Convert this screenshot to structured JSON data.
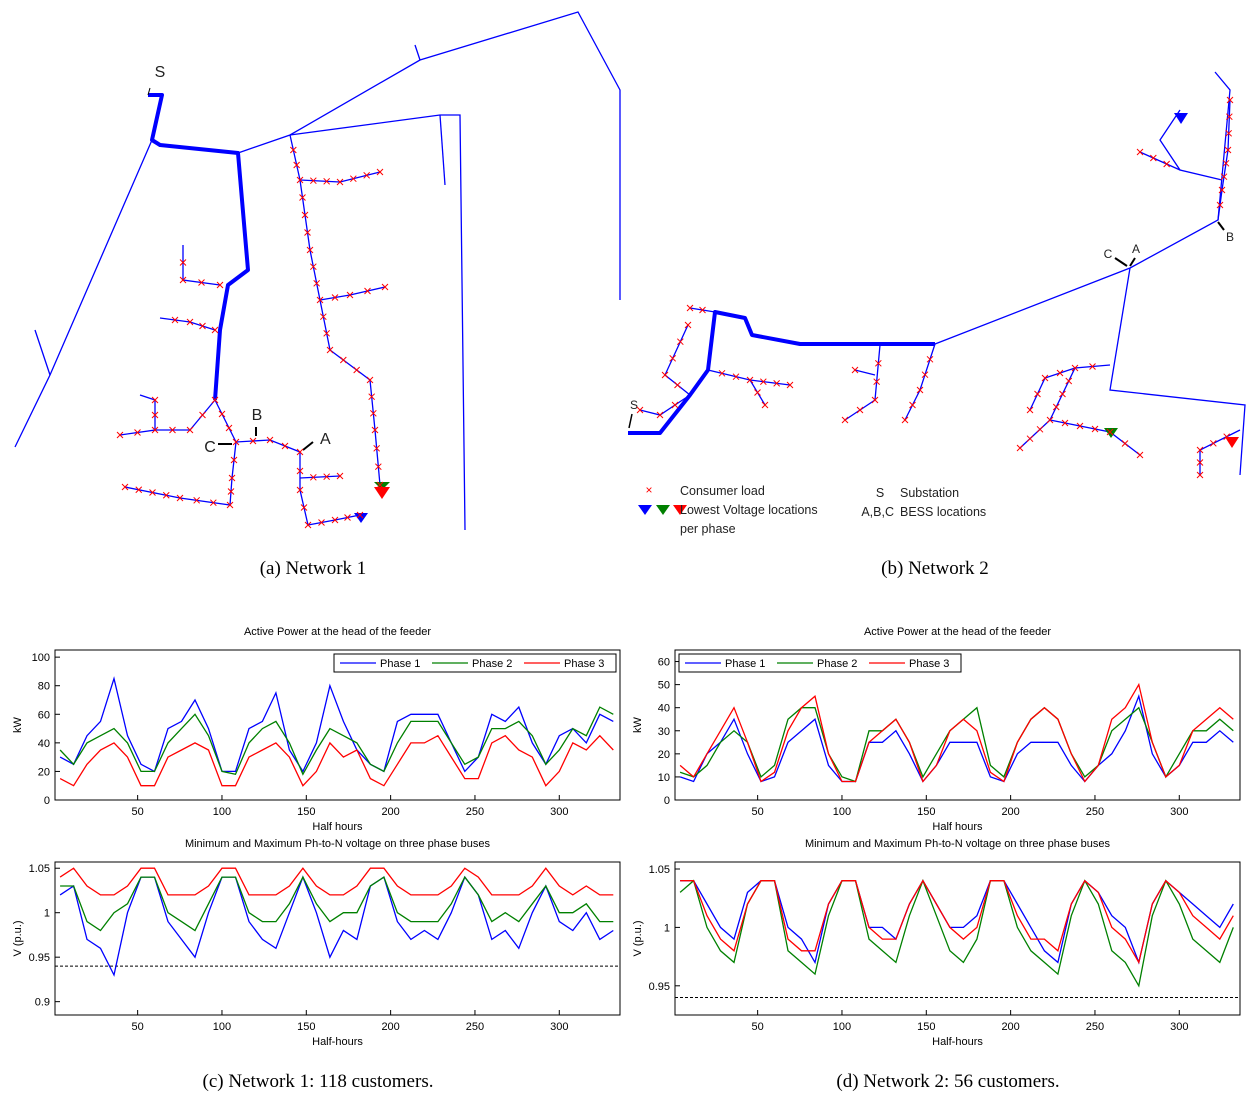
{
  "diagrams": [
    {
      "caption": "(a) Network 1",
      "labels": [
        "S",
        "A",
        "B",
        "C"
      ]
    },
    {
      "caption": "(b) Network 2",
      "labels": [
        "S",
        "A",
        "B",
        "C"
      ]
    }
  ],
  "diagram_legend": {
    "consumer_load": "Consumer load",
    "lowest_voltage": "Lowest Voltage locations",
    "per_phase": "per phase",
    "substation_key": "S",
    "substation": "Substation",
    "bess_key": "A,B,C",
    "bess": "BESS locations"
  },
  "chart_captions": [
    "(c) Network 1: 118 customers.",
    "(d) Network 2: 56 customers."
  ],
  "chart_data": [
    {
      "type": "line",
      "title": "Active Power at the head of the feeder",
      "xlabel": "Half hours",
      "ylabel": "kW",
      "legend": "upper right",
      "x": [
        4,
        12,
        20,
        28,
        36,
        44,
        52,
        60,
        68,
        76,
        84,
        92,
        100,
        108,
        116,
        124,
        132,
        140,
        148,
        156,
        164,
        172,
        180,
        188,
        196,
        204,
        212,
        220,
        228,
        236,
        244,
        252,
        260,
        268,
        276,
        284,
        292,
        300,
        308,
        316,
        324,
        332
      ],
      "xlim": [
        1,
        336
      ],
      "xticks": [
        50,
        100,
        150,
        200,
        250,
        300
      ],
      "ylim": [
        0,
        105
      ],
      "yticks": [
        0,
        20,
        40,
        60,
        80,
        100
      ],
      "series": [
        {
          "name": "Phase 1",
          "color": "#0000ff",
          "values": [
            30,
            25,
            45,
            55,
            85,
            45,
            25,
            20,
            50,
            55,
            70,
            50,
            20,
            20,
            50,
            55,
            75,
            35,
            20,
            40,
            80,
            55,
            35,
            25,
            20,
            55,
            60,
            60,
            60,
            40,
            20,
            30,
            60,
            55,
            65,
            40,
            25,
            45,
            50,
            40,
            60,
            55
          ]
        },
        {
          "name": "Phase 2",
          "color": "#008000",
          "values": [
            35,
            25,
            40,
            45,
            50,
            40,
            20,
            20,
            40,
            50,
            60,
            45,
            20,
            18,
            40,
            50,
            55,
            40,
            18,
            35,
            50,
            45,
            40,
            25,
            20,
            40,
            55,
            55,
            55,
            40,
            25,
            30,
            50,
            50,
            55,
            45,
            25,
            35,
            50,
            45,
            65,
            60
          ]
        },
        {
          "name": "Phase 3",
          "color": "#ff0000",
          "values": [
            15,
            10,
            25,
            35,
            40,
            30,
            10,
            10,
            30,
            35,
            40,
            35,
            10,
            10,
            30,
            35,
            40,
            30,
            10,
            20,
            40,
            30,
            35,
            15,
            10,
            25,
            40,
            40,
            45,
            30,
            15,
            15,
            40,
            45,
            35,
            30,
            10,
            20,
            40,
            35,
            45,
            35
          ]
        }
      ]
    },
    {
      "type": "line",
      "title": "Minimum and Maximum Ph-to-N voltage on three phase buses",
      "xlabel": "Half-hours",
      "ylabel": "V (p.u.)",
      "threshold": 0.94,
      "x": [
        4,
        12,
        20,
        28,
        36,
        44,
        52,
        60,
        68,
        76,
        84,
        92,
        100,
        108,
        116,
        124,
        132,
        140,
        148,
        156,
        164,
        172,
        180,
        188,
        196,
        204,
        212,
        220,
        228,
        236,
        244,
        252,
        260,
        268,
        276,
        284,
        292,
        300,
        308,
        316,
        324,
        332
      ],
      "xlim": [
        1,
        336
      ],
      "xticks": [
        50,
        100,
        150,
        200,
        250,
        300
      ],
      "ylim": [
        0.885,
        1.057
      ],
      "yticks": [
        0.9,
        0.95,
        1,
        1.05
      ],
      "series": [
        {
          "name": "Phase 1",
          "color": "#0000ff",
          "values": [
            1.02,
            1.03,
            0.97,
            0.96,
            0.93,
            1.0,
            1.04,
            1.04,
            0.99,
            0.97,
            0.95,
            1.0,
            1.04,
            1.04,
            0.99,
            0.97,
            0.96,
            1.0,
            1.04,
            1.0,
            0.95,
            0.98,
            0.97,
            1.03,
            1.04,
            0.99,
            0.97,
            0.98,
            0.97,
            1.0,
            1.04,
            1.02,
            0.97,
            0.98,
            0.96,
            1.0,
            1.03,
            0.99,
            0.98,
            1.0,
            0.97,
            0.98
          ]
        },
        {
          "name": "Phase 2",
          "color": "#008000",
          "values": [
            1.03,
            1.03,
            0.99,
            0.98,
            1.0,
            1.01,
            1.04,
            1.04,
            1.0,
            0.99,
            0.98,
            1.01,
            1.04,
            1.04,
            1.0,
            0.99,
            0.99,
            1.01,
            1.04,
            1.01,
            0.99,
            1.0,
            1.0,
            1.03,
            1.04,
            1.0,
            0.99,
            0.99,
            0.99,
            1.01,
            1.04,
            1.02,
            0.99,
            1.0,
            0.99,
            1.01,
            1.03,
            1.0,
            1.0,
            1.01,
            0.99,
            0.99
          ]
        },
        {
          "name": "Phase 3",
          "color": "#ff0000",
          "values": [
            1.04,
            1.05,
            1.03,
            1.02,
            1.02,
            1.03,
            1.05,
            1.05,
            1.02,
            1.02,
            1.02,
            1.03,
            1.05,
            1.05,
            1.02,
            1.02,
            1.02,
            1.03,
            1.05,
            1.03,
            1.02,
            1.02,
            1.03,
            1.05,
            1.05,
            1.03,
            1.02,
            1.02,
            1.02,
            1.03,
            1.05,
            1.04,
            1.02,
            1.02,
            1.02,
            1.03,
            1.05,
            1.03,
            1.02,
            1.03,
            1.02,
            1.02
          ]
        }
      ]
    },
    {
      "type": "line",
      "title": "Active Power at the head of the feeder",
      "xlabel": "Half hours",
      "ylabel": "kW",
      "legend": "upper left",
      "x": [
        4,
        12,
        20,
        28,
        36,
        44,
        52,
        60,
        68,
        76,
        84,
        92,
        100,
        108,
        116,
        124,
        132,
        140,
        148,
        156,
        164,
        172,
        180,
        188,
        196,
        204,
        212,
        220,
        228,
        236,
        244,
        252,
        260,
        268,
        276,
        284,
        292,
        300,
        308,
        316,
        324,
        332
      ],
      "xlim": [
        1,
        336
      ],
      "xticks": [
        50,
        100,
        150,
        200,
        250,
        300
      ],
      "ylim": [
        0,
        65
      ],
      "yticks": [
        0,
        10,
        20,
        30,
        40,
        50,
        60
      ],
      "series": [
        {
          "name": "Phase 1",
          "color": "#0000ff",
          "values": [
            10,
            8,
            20,
            25,
            35,
            20,
            8,
            10,
            25,
            30,
            35,
            15,
            8,
            8,
            25,
            25,
            30,
            20,
            8,
            15,
            25,
            25,
            25,
            10,
            8,
            20,
            25,
            25,
            25,
            15,
            8,
            15,
            20,
            30,
            45,
            20,
            10,
            15,
            25,
            25,
            30,
            25
          ]
        },
        {
          "name": "Phase 2",
          "color": "#008000",
          "values": [
            12,
            10,
            15,
            25,
            30,
            25,
            10,
            15,
            35,
            40,
            40,
            20,
            10,
            8,
            30,
            30,
            35,
            25,
            10,
            20,
            30,
            35,
            40,
            15,
            10,
            25,
            35,
            40,
            35,
            20,
            10,
            15,
            30,
            35,
            40,
            25,
            10,
            20,
            30,
            30,
            35,
            30
          ]
        },
        {
          "name": "Phase 3",
          "color": "#ff0000",
          "values": [
            15,
            10,
            20,
            30,
            40,
            25,
            8,
            12,
            30,
            40,
            45,
            20,
            8,
            8,
            25,
            30,
            35,
            25,
            8,
            15,
            30,
            35,
            30,
            12,
            8,
            25,
            35,
            40,
            35,
            20,
            8,
            15,
            35,
            40,
            50,
            25,
            10,
            15,
            30,
            35,
            40,
            35
          ]
        }
      ]
    },
    {
      "type": "line",
      "title": "Minimum and Maximum Ph-to-N voltage on three phase buses",
      "xlabel": "Half-hours",
      "ylabel": "V (p.u.)",
      "threshold": 0.94,
      "x": [
        4,
        12,
        20,
        28,
        36,
        44,
        52,
        60,
        68,
        76,
        84,
        92,
        100,
        108,
        116,
        124,
        132,
        140,
        148,
        156,
        164,
        172,
        180,
        188,
        196,
        204,
        212,
        220,
        228,
        236,
        244,
        252,
        260,
        268,
        276,
        284,
        292,
        300,
        308,
        316,
        324,
        332
      ],
      "xlim": [
        1,
        336
      ],
      "xticks": [
        50,
        100,
        150,
        200,
        250,
        300
      ],
      "ylim": [
        0.925,
        1.056
      ],
      "yticks": [
        0.95,
        1,
        1.05
      ],
      "series": [
        {
          "name": "Phase 1",
          "color": "#0000ff",
          "values": [
            1.04,
            1.04,
            1.02,
            1.0,
            0.99,
            1.03,
            1.04,
            1.04,
            1.0,
            0.99,
            0.97,
            1.02,
            1.04,
            1.04,
            1.0,
            1.0,
            0.99,
            1.02,
            1.04,
            1.02,
            1.0,
            1.0,
            1.01,
            1.04,
            1.04,
            1.02,
            1.0,
            0.98,
            0.97,
            1.02,
            1.04,
            1.03,
            1.01,
            1.0,
            0.97,
            1.02,
            1.04,
            1.03,
            1.02,
            1.01,
            1.0,
            1.02
          ]
        },
        {
          "name": "Phase 2",
          "color": "#008000",
          "values": [
            1.03,
            1.04,
            1.0,
            0.98,
            0.97,
            1.02,
            1.04,
            1.04,
            0.98,
            0.97,
            0.96,
            1.01,
            1.04,
            1.04,
            0.99,
            0.98,
            0.97,
            1.01,
            1.04,
            1.01,
            0.98,
            0.97,
            0.99,
            1.04,
            1.04,
            1.0,
            0.98,
            0.97,
            0.96,
            1.01,
            1.04,
            1.02,
            0.98,
            0.97,
            0.95,
            1.01,
            1.04,
            1.02,
            0.99,
            0.98,
            0.97,
            1.0
          ]
        },
        {
          "name": "Phase 3",
          "color": "#ff0000",
          "values": [
            1.04,
            1.04,
            1.01,
            0.99,
            0.98,
            1.02,
            1.04,
            1.04,
            0.99,
            0.98,
            0.98,
            1.02,
            1.04,
            1.04,
            1.0,
            0.99,
            0.99,
            1.02,
            1.04,
            1.02,
            1.0,
            0.99,
            1.0,
            1.04,
            1.04,
            1.01,
            0.99,
            0.99,
            0.98,
            1.02,
            1.04,
            1.03,
            1.0,
            0.99,
            0.97,
            1.02,
            1.04,
            1.03,
            1.01,
            1.0,
            0.99,
            1.01
          ]
        }
      ]
    }
  ]
}
